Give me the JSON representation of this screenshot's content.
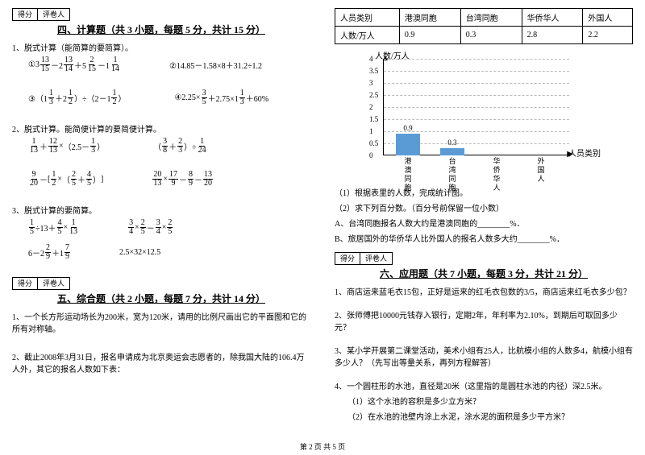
{
  "left": {
    "scorebox": [
      "得分",
      "评卷人"
    ],
    "section4": {
      "title": "四、计算题（共 3 小题，每题 5 分，共计 15 分）",
      "q1_intro": "1、脱式计算（能简算的要简算）。",
      "q1a_pre": "①3",
      "q1a_mid": "－2",
      "q1a_mid2": "＋5",
      "q1a_mid3": "－1",
      "q1b": "②14.85－1.58×8＋31.2÷1.2",
      "q1c_pre": "③（1",
      "q1c_mid": "＋2",
      "q1c_mid2": "）÷（2－1",
      "q1c_end": "）",
      "q1d_pre": "④2.25×",
      "q1d_mid": "＋2.75×1",
      "q1d_end": "＋60%",
      "q2_intro": "2、脱式计算。能简便计算的要简便计算。",
      "q2a_mid": "＋",
      "q2a_mid2": "×",
      "q2a_paren": "（2.5－",
      "q2a_end": "）",
      "q2b_paren": "（",
      "q2b_mid": " ＋ ",
      "q2b_end": "）÷",
      "q2c_mid": "－",
      "q2c_mid2": "×",
      "q2c_paren": "（",
      "q2c_plus": "＋",
      "q2c_end": "）",
      "q2d_mid": "×",
      "q2d_mid2": "－",
      "q2d_mid3": "－",
      "q3_intro": "3、脱式计算的要简算。",
      "q3a_pre": "",
      "q3a_mid": "÷13＋",
      "q3a_mid2": "×",
      "q3b_mid": "×",
      "q3b_mid2": "－",
      "q3b_mid3": "×",
      "q3c_pre": "6－2",
      "q3c_mid": "＋1",
      "q3d": "2.5×32×12.5"
    },
    "section5": {
      "title": "五、综合题（共 2 小题，每题 7 分，共计 14 分）",
      "q1": "1、一个长方形运动场长为200米，宽为120米，请用的比例尺画出它的平面图和它的所有对称轴。",
      "q2": "2、截止2008年3月31日，报名申请成为北京奥运会志愿者的，除我国大陆的106.4万人外，其它的报名人数如下表："
    }
  },
  "right": {
    "table": {
      "headers": [
        "人员类别",
        "港澳同胞",
        "台湾同胞",
        "华侨华人",
        "外国人"
      ],
      "rowlabel": "人数/万人",
      "values": [
        "0.9",
        "0.3",
        "2.8",
        "2.2"
      ]
    },
    "chart": {
      "ylabel": "人数/万人",
      "xlabel": "人员类别",
      "ymax": 4,
      "ystep": 0.5,
      "yticks": [
        "0",
        "0.5",
        "1",
        "1.5",
        "2",
        "2.5",
        "3",
        "3.5",
        "4"
      ],
      "categories": [
        "港澳同胞",
        "台湾同胞",
        "华侨华人",
        "外国人"
      ],
      "bars": [
        {
          "label": "0.9",
          "value": 0.9
        },
        {
          "label": "0.3",
          "value": 0.3
        }
      ],
      "bar_color": "#5b9bd5"
    },
    "sub_questions": {
      "a": "（1）根据表里的人数，完成统计图。",
      "b": "（2）求下列百分数。（百分号前保留一位小数）",
      "c": "A、台湾同胞报名人数大约是港澳同胞的________%．",
      "d": "B、旅居国外的华侨华人比外国人的报名人数多大约________%．"
    },
    "scorebox": [
      "得分",
      "评卷人"
    ],
    "section6": {
      "title": "六、应用题（共 7 小题，每题 3 分，共计 21 分）",
      "q1": "1、商店运来蓝毛衣15包，正好是运来的红毛衣包数的3/5，商店运来红毛衣多少包？",
      "q2": "2、张师傅把10000元钱存入银行，定期2年，年利率为2.10%，到期后可取回多少元？",
      "q3": "3、某小学开展第二课堂活动，美术小组有25人，比航模小组的人数多4，航模小组有多少人？（先写出等量关系，再列方程解答）",
      "q4": "4、一个圆柱形的水池，直径是20米（这里指的是圆柱水池的内径）深2.5米。",
      "q4a": "（1）这个水池的容积是多少立方米？",
      "q4b": "（2）在水池的池壁内涂上水泥，涂水泥的面积是多少平方米？"
    }
  },
  "footer": "第 2 页 共 5 页",
  "fracs": {
    "f13_15": {
      "n": "13",
      "d": "15"
    },
    "f13_14": {
      "n": "13",
      "d": "14"
    },
    "f2_15": {
      "n": "2",
      "d": "15"
    },
    "f1_14": {
      "n": "1",
      "d": "14"
    },
    "f1_3": {
      "n": "1",
      "d": "3"
    },
    "f1_2": {
      "n": "1",
      "d": "2"
    },
    "f3_5": {
      "n": "3",
      "d": "5"
    },
    "f1_13": {
      "n": "1",
      "d": "13"
    },
    "f12_13": {
      "n": "12",
      "d": "13"
    },
    "f3_8": {
      "n": "3",
      "d": "8"
    },
    "f2_3": {
      "n": "2",
      "d": "3"
    },
    "f1_24": {
      "n": "1",
      "d": "24"
    },
    "f9_20": {
      "n": "9",
      "d": "20"
    },
    "f2_5": {
      "n": "2",
      "d": "5"
    },
    "f4_5": {
      "n": "4",
      "d": "5"
    },
    "f20_13": {
      "n": "20",
      "d": "13"
    },
    "f17_9": {
      "n": "17",
      "d": "9"
    },
    "f8_9": {
      "n": "8",
      "d": "9"
    },
    "f13_20": {
      "n": "13",
      "d": "20"
    },
    "f1_5": {
      "n": "1",
      "d": "5"
    },
    "f3_4": {
      "n": "3",
      "d": "4"
    },
    "f2_9": {
      "n": "2",
      "d": "9"
    },
    "f7_9": {
      "n": "7",
      "d": "9"
    }
  }
}
